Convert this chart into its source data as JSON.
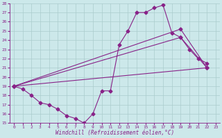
{
  "xlabel": "Windchill (Refroidissement éolien,°C)",
  "bg_color": "#cce8ea",
  "line_color": "#882288",
  "grid_color": "#aacccc",
  "xlim": [
    -0.5,
    23.5
  ],
  "ylim": [
    15,
    28
  ],
  "xticks": [
    0,
    1,
    2,
    3,
    4,
    5,
    6,
    7,
    8,
    9,
    10,
    11,
    12,
    13,
    14,
    15,
    16,
    17,
    18,
    19,
    20,
    21,
    22,
    23
  ],
  "yticks": [
    15,
    16,
    17,
    18,
    19,
    20,
    21,
    22,
    23,
    24,
    25,
    26,
    27,
    28
  ],
  "line1_x": [
    0,
    1,
    2,
    3,
    4,
    5,
    6,
    7,
    8,
    9,
    10,
    11,
    12,
    13,
    14,
    15,
    16,
    17,
    18,
    19,
    20,
    21,
    22
  ],
  "line1_y": [
    19.0,
    18.7,
    18.0,
    17.2,
    17.0,
    16.5,
    15.8,
    15.5,
    15.0,
    16.0,
    18.5,
    18.5,
    23.5,
    25.0,
    27.0,
    27.0,
    27.5,
    27.8,
    24.8,
    24.3,
    23.0,
    22.0,
    21.5
  ],
  "line2_x": [
    0,
    22
  ],
  "line2_y": [
    19.0,
    21.0
  ],
  "line3_x": [
    0,
    19,
    22
  ],
  "line3_y": [
    19.0,
    24.3,
    21.0
  ],
  "line4_x": [
    0,
    19,
    22
  ],
  "line4_y": [
    19.0,
    25.2,
    21.0
  ],
  "markersize": 2.5,
  "linewidth": 0.8
}
